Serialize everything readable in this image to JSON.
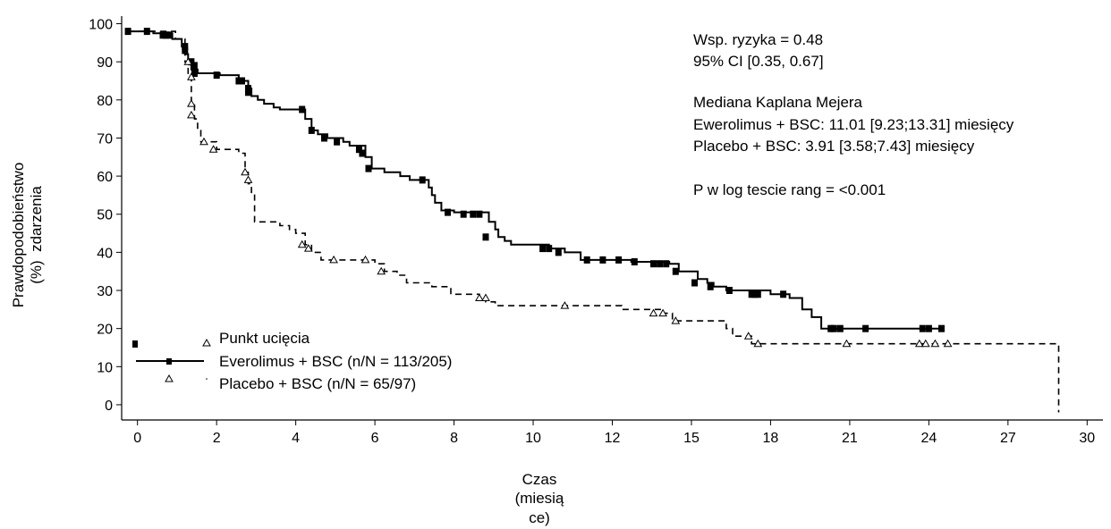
{
  "chart_data": {
    "type": "line",
    "subtype": "kaplan-meier",
    "ylabel_line1": "Prawdopodobieństwo",
    "ylabel_line2": "(%)  zdarzenia",
    "xlabel_lines": [
      "Czas",
      "(miesią",
      "ce)"
    ],
    "yticks": [
      0,
      10,
      20,
      30,
      40,
      50,
      60,
      70,
      80,
      90,
      100
    ],
    "xtick_labels": [
      "0",
      "2",
      "4",
      "6",
      "8",
      "10",
      "12",
      "15",
      "18",
      "21",
      "24",
      "27",
      "30"
    ],
    "xlim": [
      -0.5,
      30.5
    ],
    "ylim": [
      -4,
      102
    ],
    "annotations": [
      "Wsp. ryzyka = 0.48",
      "95% CI [0.35, 0.67]",
      "",
      "Mediana Kaplana Mejera",
      "Ewerolimus + BSC: 11.01 [9.23;13.31] miesięcy",
      "Placebo + BSC: 3.91 [3.58;7.43] miesięcy",
      "",
      "P w log tescie rang = <0.001"
    ],
    "legend": {
      "censor_label": "Punkt ucięcia",
      "series_labels": [
        "Everolimus + BSC (n/N = 113/205)",
        "Placebo + BSC (n/N = 65/97)"
      ]
    },
    "series": [
      {
        "name": "Everolimus + BSC (n/N = 113/205)",
        "line": "solid",
        "marker": "square",
        "steps": [
          [
            -0.3,
            98
          ],
          [
            0.5,
            97.5
          ],
          [
            1.1,
            96
          ],
          [
            1.4,
            94
          ],
          [
            1.5,
            92
          ],
          [
            1.6,
            90
          ],
          [
            1.7,
            88
          ],
          [
            1.9,
            87
          ],
          [
            2.6,
            86.5
          ],
          [
            3.2,
            85
          ],
          [
            3.5,
            83
          ],
          [
            3.6,
            81
          ],
          [
            3.8,
            80
          ],
          [
            4.0,
            79
          ],
          [
            4.3,
            78
          ],
          [
            4.5,
            77.5
          ],
          [
            5.3,
            75
          ],
          [
            5.5,
            72
          ],
          [
            5.7,
            71
          ],
          [
            6.0,
            70
          ],
          [
            6.5,
            69
          ],
          [
            6.7,
            68
          ],
          [
            7.2,
            65
          ],
          [
            7.4,
            62
          ],
          [
            7.8,
            61
          ],
          [
            8.3,
            60
          ],
          [
            8.6,
            59
          ],
          [
            9.2,
            57
          ],
          [
            9.3,
            55
          ],
          [
            9.4,
            53
          ],
          [
            9.6,
            51
          ],
          [
            10.0,
            50.5
          ],
          [
            11.1,
            48
          ],
          [
            11.3,
            46
          ],
          [
            11.4,
            44
          ],
          [
            11.6,
            43
          ],
          [
            11.8,
            42
          ],
          [
            13.0,
            41
          ],
          [
            13.5,
            40
          ],
          [
            14.0,
            38
          ],
          [
            15.0,
            38
          ],
          [
            15.6,
            37.5
          ],
          [
            16.8,
            37
          ],
          [
            17.1,
            35
          ],
          [
            17.7,
            33
          ],
          [
            18.0,
            32
          ],
          [
            18.2,
            31
          ],
          [
            18.6,
            30
          ],
          [
            20.0,
            29
          ],
          [
            20.6,
            28
          ],
          [
            21.0,
            25
          ],
          [
            21.3,
            23
          ],
          [
            21.6,
            20
          ],
          [
            25.4,
            20
          ]
        ],
        "censored": [
          [
            -0.3,
            98
          ],
          [
            0.3,
            98
          ],
          [
            0.8,
            97
          ],
          [
            0.9,
            97
          ],
          [
            1.0,
            97
          ],
          [
            1.5,
            94
          ],
          [
            1.5,
            93
          ],
          [
            1.7,
            90
          ],
          [
            1.8,
            87
          ],
          [
            1.8,
            89
          ],
          [
            2.5,
            86.5
          ],
          [
            3.2,
            85
          ],
          [
            3.3,
            85
          ],
          [
            3.5,
            83
          ],
          [
            3.5,
            82
          ],
          [
            5.2,
            77.5
          ],
          [
            5.5,
            72
          ],
          [
            5.9,
            70
          ],
          [
            6.3,
            69
          ],
          [
            7.0,
            67
          ],
          [
            7.1,
            66
          ],
          [
            7.3,
            62
          ],
          [
            9.0,
            59
          ],
          [
            9.8,
            50.5
          ],
          [
            10.3,
            50
          ],
          [
            10.6,
            50
          ],
          [
            10.8,
            50
          ],
          [
            11.0,
            44
          ],
          [
            12.8,
            41
          ],
          [
            13.0,
            41
          ],
          [
            13.3,
            40
          ],
          [
            14.2,
            38
          ],
          [
            14.7,
            38
          ],
          [
            15.2,
            38
          ],
          [
            15.7,
            37.5
          ],
          [
            16.3,
            37
          ],
          [
            16.5,
            37
          ],
          [
            16.7,
            37
          ],
          [
            17.0,
            35
          ],
          [
            17.6,
            32
          ],
          [
            18.1,
            31
          ],
          [
            18.7,
            30
          ],
          [
            19.4,
            29
          ],
          [
            19.5,
            29
          ],
          [
            19.6,
            29
          ],
          [
            20.4,
            29
          ],
          [
            21.9,
            20
          ],
          [
            22.0,
            20
          ],
          [
            22.2,
            20
          ],
          [
            23.0,
            20
          ],
          [
            24.8,
            20
          ],
          [
            25.0,
            20
          ],
          [
            25.4,
            20
          ]
        ]
      },
      {
        "name": "Placebo + BSC (n/N = 65/97)",
        "line": "dashed",
        "marker": "triangle",
        "steps": [
          [
            -0.3,
            98
          ],
          [
            1.2,
            96
          ],
          [
            1.5,
            90
          ],
          [
            1.6,
            86
          ],
          [
            1.7,
            79
          ],
          [
            1.8,
            75
          ],
          [
            1.9,
            72
          ],
          [
            2.0,
            69
          ],
          [
            2.5,
            67
          ],
          [
            3.2,
            66
          ],
          [
            3.4,
            61
          ],
          [
            3.5,
            58
          ],
          [
            3.6,
            55
          ],
          [
            3.7,
            48
          ],
          [
            4.5,
            47
          ],
          [
            4.8,
            46
          ],
          [
            5.0,
            45
          ],
          [
            5.3,
            42
          ],
          [
            5.5,
            40
          ],
          [
            5.8,
            38
          ],
          [
            7.5,
            37
          ],
          [
            7.8,
            35
          ],
          [
            8.2,
            34
          ],
          [
            8.5,
            32
          ],
          [
            9.3,
            31
          ],
          [
            9.9,
            29
          ],
          [
            10.8,
            28
          ],
          [
            11.0,
            27
          ],
          [
            11.3,
            26
          ],
          [
            15.3,
            25
          ],
          [
            16.6,
            24
          ],
          [
            16.9,
            22
          ],
          [
            18.6,
            20
          ],
          [
            18.8,
            18
          ],
          [
            19.4,
            16
          ],
          [
            29.1,
            16
          ],
          [
            29.1,
            -2
          ]
        ],
        "censored": [
          [
            1.6,
            90
          ],
          [
            1.7,
            86
          ],
          [
            1.7,
            79
          ],
          [
            1.7,
            76
          ],
          [
            2.1,
            69
          ],
          [
            2.4,
            67
          ],
          [
            3.4,
            61
          ],
          [
            3.5,
            59
          ],
          [
            5.2,
            42
          ],
          [
            5.4,
            41
          ],
          [
            6.2,
            38
          ],
          [
            7.2,
            38
          ],
          [
            7.7,
            35
          ],
          [
            10.8,
            28
          ],
          [
            11.0,
            28
          ],
          [
            13.5,
            26
          ],
          [
            16.3,
            24
          ],
          [
            16.6,
            24
          ],
          [
            17.0,
            22
          ],
          [
            19.3,
            18
          ],
          [
            19.6,
            16
          ],
          [
            22.4,
            16
          ],
          [
            24.7,
            16
          ],
          [
            24.9,
            16
          ],
          [
            25.2,
            16
          ],
          [
            25.6,
            16
          ]
        ]
      }
    ]
  }
}
